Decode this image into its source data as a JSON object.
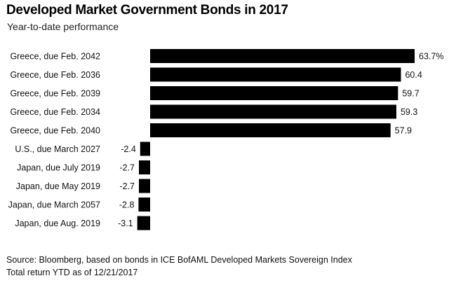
{
  "chart_data": {
    "type": "bar",
    "orientation": "horizontal",
    "title": "Developed Market Government Bonds in 2017",
    "subtitle": "Year-to-date performance",
    "categories": [
      "Greece, due Feb. 2042",
      "Greece, due Feb. 2036",
      "Greece, due Feb. 2039",
      "Greece, due Feb. 2034",
      "Greece, due Feb. 2040",
      "U.S., due March 2027",
      "Japan, due July 2019",
      "Japan, due May 2019",
      "Japan, due March 2057",
      "Japan, due Aug. 2019"
    ],
    "values": [
      63.7,
      60.4,
      59.7,
      59.3,
      57.9,
      -2.4,
      -2.7,
      -2.7,
      -2.8,
      -3.1
    ],
    "value_labels": [
      "63.7%",
      "60.4",
      "59.7",
      "59.3",
      "57.9",
      "-2.4",
      "-2.7",
      "-2.7",
      "-2.8",
      "-3.1"
    ],
    "bar_color": "#000000",
    "grid": false,
    "legend": "none",
    "xlim": [
      -3.1,
      63.7
    ]
  },
  "footer": {
    "source": "Source: Bloomberg, based on bonds in ICE BofAML Developed Markets Sovereign Index",
    "note": "Total return YTD as of 12/21/2017"
  }
}
